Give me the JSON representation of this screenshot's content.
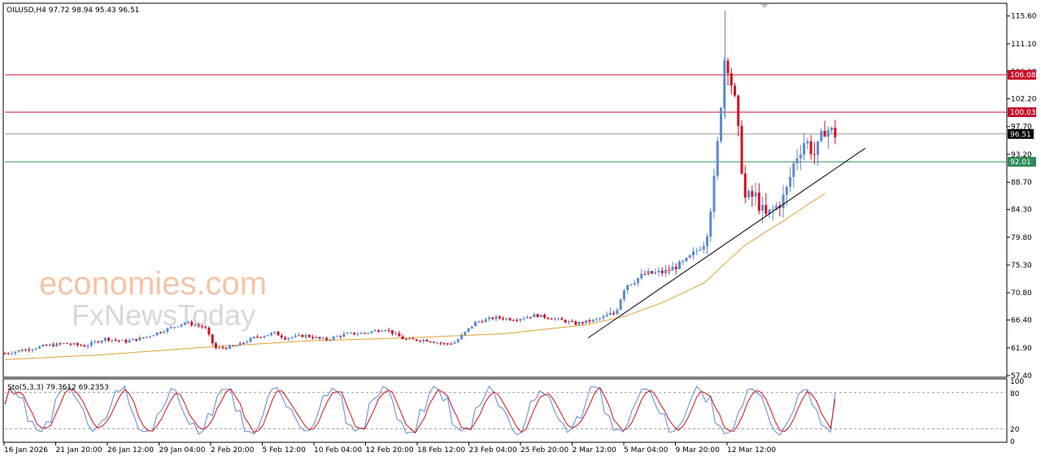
{
  "chart_data": {
    "type": "candlestick",
    "symbol_info": "OILUSD,H4  97.72 98.94 95.43 96.51",
    "current_price": "96.51",
    "y_ticks": [
      "115.60",
      "111.10",
      "106.60",
      "102.20",
      "97.70",
      "93.20",
      "88.70",
      "84.30",
      "79.80",
      "75.30",
      "70.80",
      "66.40",
      "61.90",
      "57.40"
    ],
    "ylim": [
      57.4,
      117.4
    ],
    "x_ticks": [
      "16 Jan 2026",
      "21 Jan 20:00",
      "26 Jan 12:00",
      "29 Jan 04:00",
      "2 Feb 20:00",
      "5 Feb 12:00",
      "10 Feb 04:00",
      "12 Feb 20:00",
      "18 Feb 12:00",
      "23 Feb 04:00",
      "25 Feb 20:00",
      "2 Mar 12:00",
      "5 Mar 04:00",
      "9 Mar 20:00",
      "12 Mar 12:00"
    ],
    "levels": [
      {
        "value": 106.08,
        "label": "106.08",
        "color": "#c8102e"
      },
      {
        "value": 100.03,
        "label": "100.03",
        "color": "#c8102e"
      },
      {
        "value": 92.01,
        "label": "92.01",
        "color": "#2e8b57"
      }
    ],
    "current_line_color": "#999999",
    "trendline": {
      "from": [
        0.583,
        63.5
      ],
      "to": [
        0.86,
        94.2
      ]
    },
    "ma_color": "#e0a030",
    "bull_color": "#5b8bd0",
    "bear_color": "#d01020",
    "key_closes": [
      [
        0,
        61.0
      ],
      [
        0.02,
        61.6
      ],
      [
        0.04,
        62.2
      ],
      [
        0.06,
        62.6
      ],
      [
        0.08,
        62.2
      ],
      [
        0.1,
        63.4
      ],
      [
        0.12,
        62.9
      ],
      [
        0.14,
        63.6
      ],
      [
        0.16,
        64.8
      ],
      [
        0.18,
        66.0
      ],
      [
        0.2,
        65.2
      ],
      [
        0.21,
        61.8
      ],
      [
        0.23,
        62.1
      ],
      [
        0.25,
        63.6
      ],
      [
        0.27,
        64.3
      ],
      [
        0.28,
        63.5
      ],
      [
        0.3,
        63.9
      ],
      [
        0.32,
        63.2
      ],
      [
        0.34,
        64.1
      ],
      [
        0.36,
        64.3
      ],
      [
        0.38,
        65.0
      ],
      [
        0.4,
        63.2
      ],
      [
        0.42,
        63.2
      ],
      [
        0.44,
        62.5
      ],
      [
        0.45,
        62.8
      ],
      [
        0.47,
        66.0
      ],
      [
        0.49,
        66.8
      ],
      [
        0.51,
        66.5
      ],
      [
        0.53,
        67.2
      ],
      [
        0.55,
        66.6
      ],
      [
        0.57,
        65.8
      ],
      [
        0.59,
        66.4
      ],
      [
        0.61,
        67.5
      ],
      [
        0.62,
        72.0
      ],
      [
        0.64,
        73.8
      ],
      [
        0.66,
        74.2
      ],
      [
        0.68,
        75.8
      ],
      [
        0.7,
        79.0
      ],
      [
        0.71,
        89.8
      ],
      [
        0.72,
        110.0
      ],
      [
        0.73,
        101.5
      ],
      [
        0.74,
        86.0
      ],
      [
        0.75,
        86.5
      ],
      [
        0.76,
        83.0
      ],
      [
        0.77,
        84.5
      ],
      [
        0.78,
        86.5
      ],
      [
        0.79,
        92.5
      ],
      [
        0.8,
        95.6
      ],
      [
        0.81,
        93.0
      ],
      [
        0.82,
        97.5
      ],
      [
        0.83,
        96.51
      ]
    ],
    "ma_points": [
      [
        0,
        60.0
      ],
      [
        0.1,
        60.8
      ],
      [
        0.2,
        62.0
      ],
      [
        0.3,
        63.0
      ],
      [
        0.4,
        63.5
      ],
      [
        0.5,
        64.2
      ],
      [
        0.58,
        65.6
      ],
      [
        0.62,
        67.0
      ],
      [
        0.66,
        69.4
      ],
      [
        0.7,
        72.5
      ],
      [
        0.72,
        75.6
      ],
      [
        0.74,
        78.5
      ],
      [
        0.76,
        80.6
      ],
      [
        0.78,
        82.6
      ],
      [
        0.8,
        84.8
      ],
      [
        0.82,
        86.9
      ]
    ],
    "stochastic": {
      "label": "Sto(5,3,3) 79.3612 69.2353",
      "k_value": 79.3612,
      "d_value": 69.2353,
      "levels": [
        20,
        80
      ],
      "y_ticks": [
        "100",
        "80",
        "20",
        "0"
      ],
      "k_color": "#5b8bd0",
      "d_color": "#d01020"
    },
    "watermark": {
      "line1": "economies.com",
      "line2": "FxNewsToday"
    }
  }
}
